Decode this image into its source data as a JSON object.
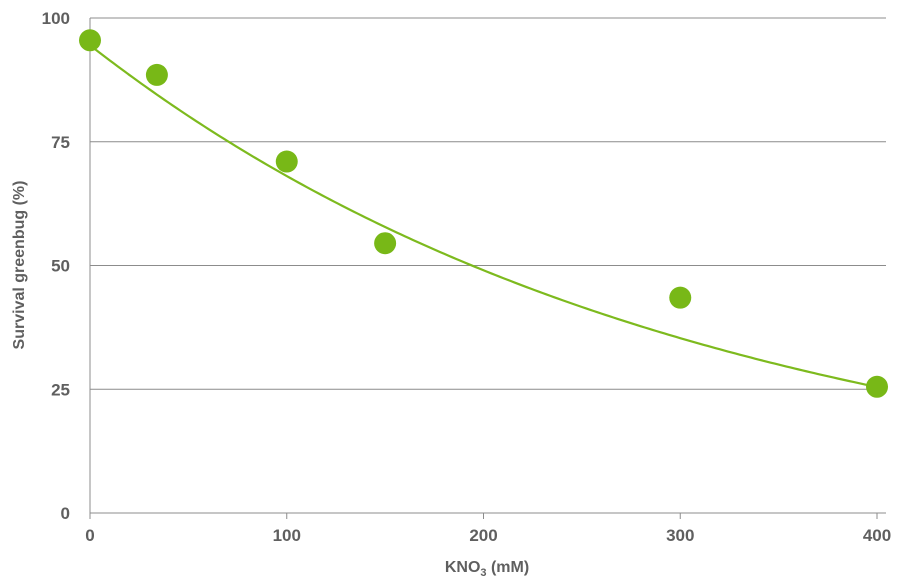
{
  "chart_data": {
    "type": "scatter",
    "xlabel_main": "KNO",
    "xlabel_sub": "3",
    "xlabel_tail": " (mM)",
    "ylabel": "Survival greenbug (%)",
    "xlim": [
      0,
      400
    ],
    "ylim": [
      0,
      100
    ],
    "xticks": [
      "0",
      "100",
      "200",
      "300",
      "400"
    ],
    "yticks": [
      "0",
      "25",
      "50",
      "75",
      "100"
    ],
    "grid": "horizontal",
    "point_color": "#78b817",
    "line_color": "#7dba1e",
    "series": [
      {
        "points": [
          {
            "x": 0,
            "y": 95.5
          },
          {
            "x": 34,
            "y": 88.5
          },
          {
            "x": 100,
            "y": 71
          },
          {
            "x": 150,
            "y": 54.5
          },
          {
            "x": 300,
            "y": 43.5
          },
          {
            "x": 400,
            "y": 25.5
          }
        ]
      }
    ],
    "trendline": {
      "type": "exponential",
      "a": 94.5,
      "b": -0.00328
    }
  }
}
